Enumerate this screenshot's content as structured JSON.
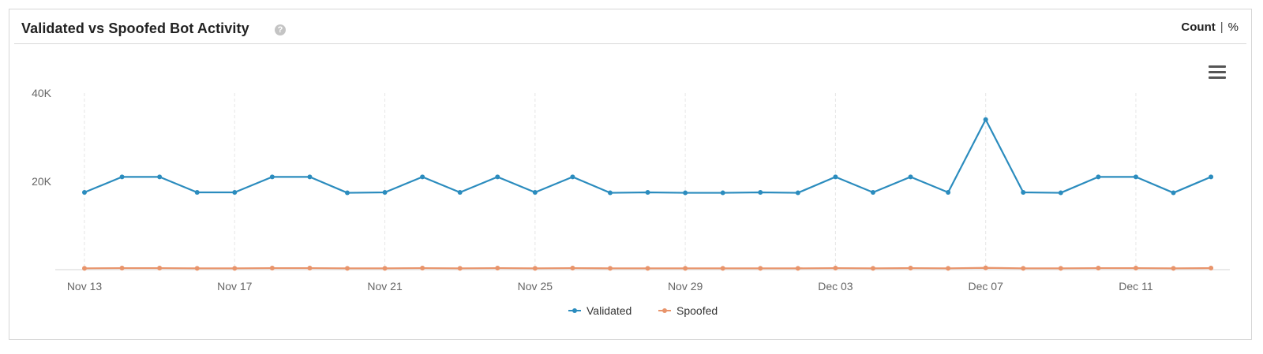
{
  "panel": {
    "title": "Validated vs Spoofed Bot Activity",
    "help_icon": "help-circle-icon",
    "toggle": {
      "count_label": "Count",
      "separator": "|",
      "percent_label": "%"
    },
    "menu_icon": "hamburger-menu-icon"
  },
  "chart_data": {
    "type": "line",
    "title": "",
    "xlabel": "",
    "ylabel": "",
    "x": [
      "Nov 13",
      "Nov 14",
      "Nov 15",
      "Nov 16",
      "Nov 17",
      "Nov 18",
      "Nov 19",
      "Nov 20",
      "Nov 21",
      "Nov 22",
      "Nov 23",
      "Nov 24",
      "Nov 25",
      "Nov 26",
      "Nov 27",
      "Nov 28",
      "Nov 29",
      "Nov 30",
      "Dec 01",
      "Dec 02",
      "Dec 03",
      "Dec 04",
      "Dec 05",
      "Dec 06",
      "Dec 07",
      "Dec 08",
      "Dec 09",
      "Dec 10",
      "Dec 11",
      "Dec 12",
      "Dec 13"
    ],
    "x_tick_labels": [
      "Nov 13",
      "Nov 17",
      "Nov 21",
      "Nov 25",
      "Nov 29",
      "Dec 03",
      "Dec 07",
      "Dec 11"
    ],
    "y_tick_labels": [
      "40K",
      "20K"
    ],
    "y_ticks": [
      40000,
      20000
    ],
    "ylim": [
      0,
      40000
    ],
    "grid": "vertical dashed",
    "legend_position": "bottom-center",
    "series": [
      {
        "name": "Validated",
        "color": "#2b8cbe",
        "values": [
          17500,
          21000,
          21000,
          17500,
          17500,
          21000,
          21000,
          17400,
          17500,
          21000,
          17500,
          21000,
          17500,
          21000,
          17400,
          17500,
          17400,
          17400,
          17500,
          17400,
          21000,
          17500,
          21000,
          17500,
          34000,
          17500,
          17400,
          21000,
          21000,
          17400,
          21000
        ]
      },
      {
        "name": "Spoofed",
        "color": "#e8946b",
        "values": [
          300,
          350,
          350,
          300,
          300,
          350,
          350,
          300,
          300,
          350,
          300,
          350,
          300,
          350,
          300,
          300,
          300,
          300,
          300,
          300,
          350,
          300,
          350,
          300,
          400,
          300,
          300,
          350,
          350,
          300,
          350
        ]
      }
    ]
  }
}
